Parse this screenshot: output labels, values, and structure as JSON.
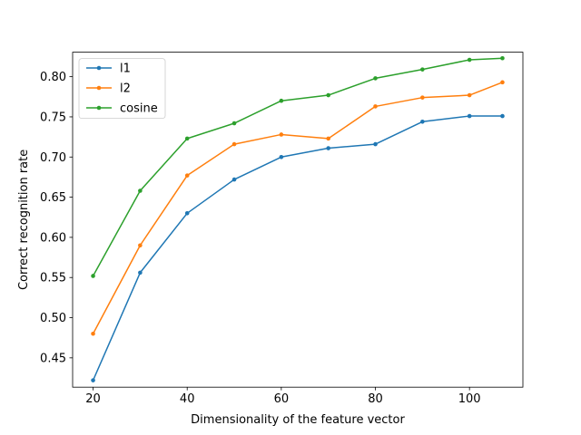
{
  "chart_data": {
    "type": "line",
    "title": "",
    "xlabel": "Dimensionality of the feature vector",
    "ylabel": "Correct recognition rate",
    "xlim": [
      15.65,
      111.35
    ],
    "ylim": [
      0.4135,
      0.8305
    ],
    "xticks": [
      20,
      40,
      60,
      80,
      100
    ],
    "xtick_labels": [
      "20",
      "40",
      "60",
      "80",
      "100"
    ],
    "yticks": [
      0.45,
      0.5,
      0.55,
      0.6,
      0.65,
      0.7,
      0.75,
      0.8
    ],
    "ytick_labels": [
      "0.45",
      "0.50",
      "0.55",
      "0.60",
      "0.65",
      "0.70",
      "0.75",
      "0.80"
    ],
    "grid": false,
    "legend_position": "top-left",
    "x": [
      20,
      30,
      40,
      50,
      60,
      70,
      80,
      90,
      100,
      107
    ],
    "series": [
      {
        "name": "l1",
        "color": "#1f77b4",
        "values": [
          0.422,
          0.556,
          0.63,
          0.672,
          0.7,
          0.711,
          0.716,
          0.744,
          0.751,
          0.751
        ]
      },
      {
        "name": "l2",
        "color": "#ff7f0e",
        "values": [
          0.48,
          0.59,
          0.677,
          0.716,
          0.728,
          0.723,
          0.763,
          0.774,
          0.777,
          0.793
        ]
      },
      {
        "name": "cosine",
        "color": "#2ca02c",
        "values": [
          0.552,
          0.658,
          0.723,
          0.742,
          0.77,
          0.777,
          0.798,
          0.809,
          0.821,
          0.823
        ]
      }
    ]
  }
}
